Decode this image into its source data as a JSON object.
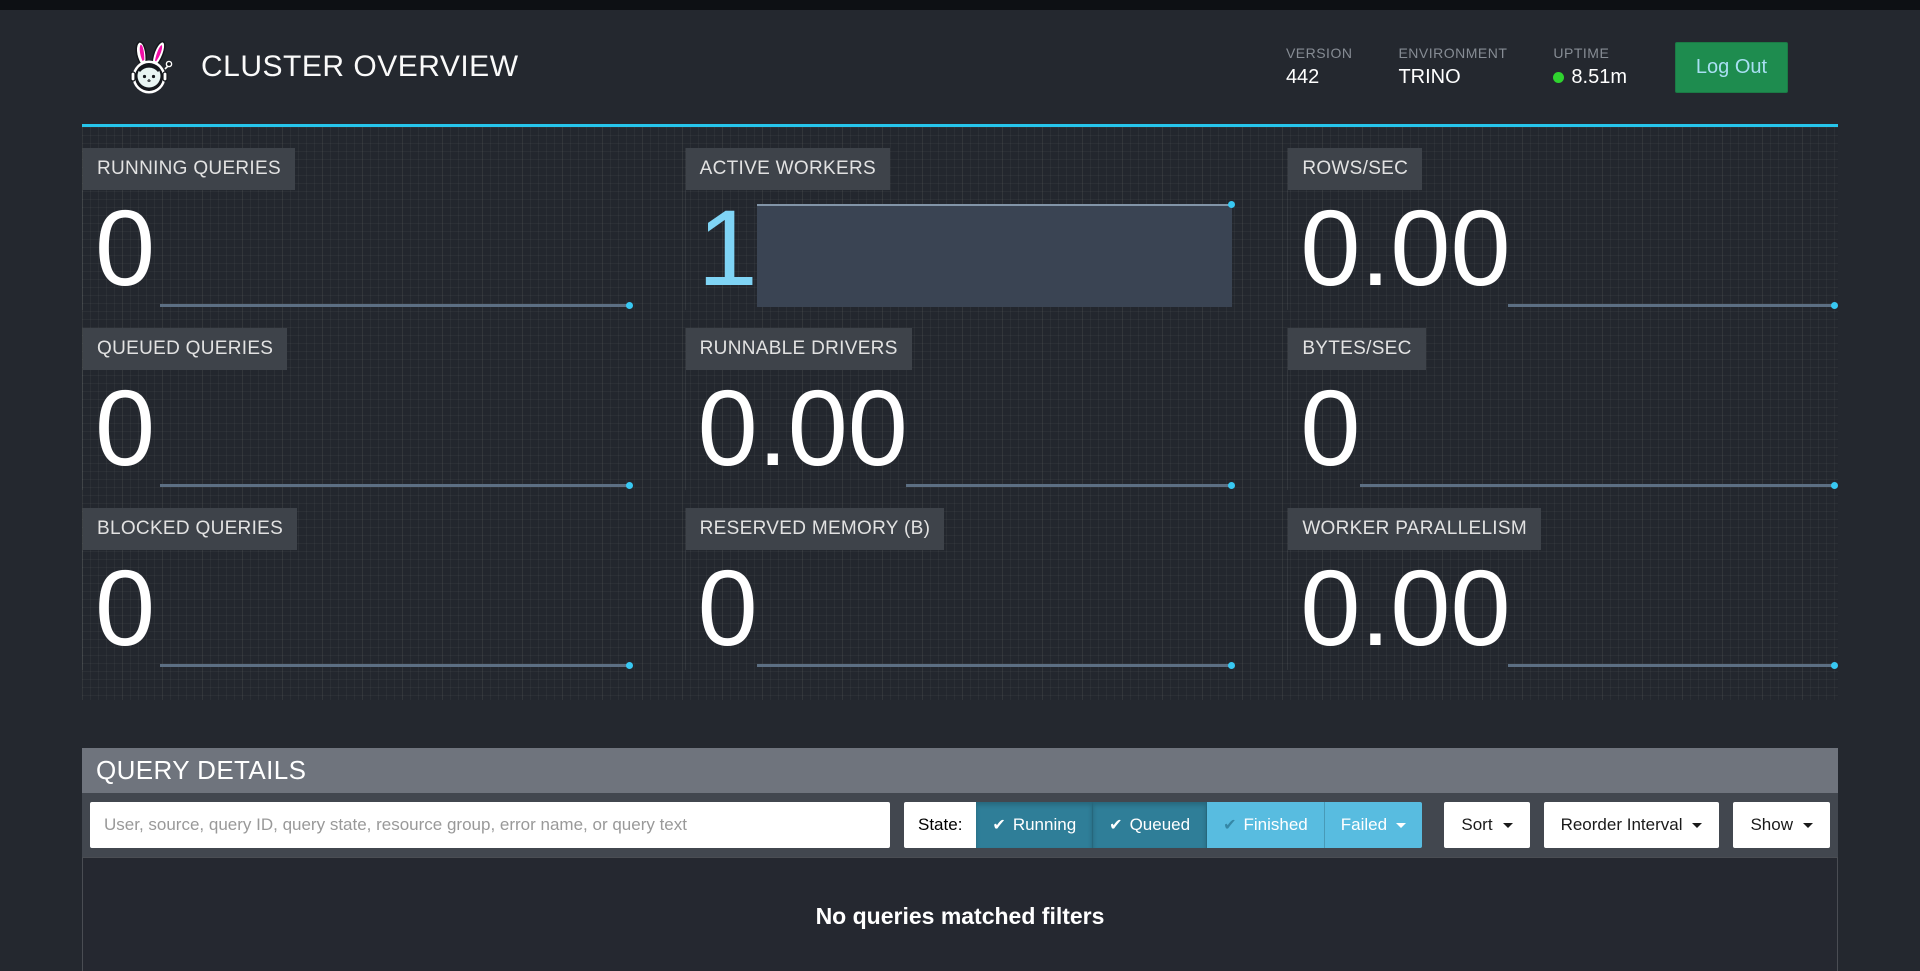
{
  "colors": {
    "accent_cyan": "#26C5EB",
    "spark_line": "#5C6F83",
    "spark_dot": "#38C8F2",
    "btn_active": "#2F7E98",
    "btn_inactive": "#58BCE0",
    "logout_green": "#1E8C4F",
    "dot_green": "#2FD32F"
  },
  "header": {
    "title": "CLUSTER OVERVIEW",
    "logo": "trino-bunny-astronaut",
    "meta": [
      {
        "label": "VERSION",
        "value": "442"
      },
      {
        "label": "ENVIRONMENT",
        "value": "TRINO"
      },
      {
        "label": "UPTIME",
        "value": "8.51m",
        "status_dot": true
      }
    ],
    "logout_label": "Log Out"
  },
  "stats": {
    "cards": [
      {
        "label": "RUNNING QUERIES",
        "value": "0",
        "spark": {
          "type": "line",
          "start_pct": 14,
          "history": "flat-zero"
        }
      },
      {
        "label": "ACTIVE WORKERS",
        "value": "1",
        "value_link": true,
        "spark": {
          "type": "area",
          "start_pct": 13,
          "history": "flat-one"
        }
      },
      {
        "label": "ROWS/SEC",
        "value": "0.00",
        "spark": {
          "type": "line",
          "start_pct": 40,
          "history": "flat-zero"
        }
      },
      {
        "label": "QUEUED QUERIES",
        "value": "0",
        "spark": {
          "type": "line",
          "start_pct": 14,
          "history": "flat-zero"
        }
      },
      {
        "label": "RUNNABLE DRIVERS",
        "value": "0.00",
        "spark": {
          "type": "line",
          "start_pct": 40,
          "history": "flat-zero"
        }
      },
      {
        "label": "BYTES/SEC",
        "value": "0",
        "spark": {
          "type": "line",
          "start_pct": 13,
          "history": "flat-zero"
        }
      },
      {
        "label": "BLOCKED QUERIES",
        "value": "0",
        "spark": {
          "type": "line",
          "start_pct": 14,
          "history": "flat-zero"
        }
      },
      {
        "label": "RESERVED MEMORY (B)",
        "value": "0",
        "spark": {
          "type": "line",
          "start_pct": 13,
          "history": "flat-zero"
        }
      },
      {
        "label": "WORKER PARALLELISM",
        "value": "0.00",
        "spark": {
          "type": "line",
          "start_pct": 40,
          "history": "flat-zero"
        }
      }
    ]
  },
  "query_details": {
    "title": "QUERY DETAILS",
    "search_placeholder": "User, source, query ID, query state, resource group, error name, or query text",
    "state_label": "State:",
    "state_filters": [
      {
        "label": "Running",
        "active": true,
        "icon": "check-icon"
      },
      {
        "label": "Queued",
        "active": true,
        "icon": "check-icon"
      },
      {
        "label": "Finished",
        "active": false,
        "icon": "check-icon"
      },
      {
        "label": "Failed",
        "active": false,
        "icon": "caret-down-icon"
      }
    ],
    "toolbar_buttons": [
      {
        "label": "Sort"
      },
      {
        "label": "Reorder Interval"
      },
      {
        "label": "Show"
      }
    ],
    "empty_message": "No queries matched filters"
  }
}
